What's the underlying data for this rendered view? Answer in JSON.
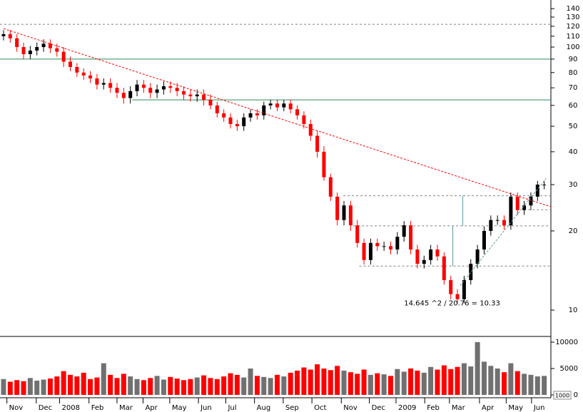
{
  "chart_data": {
    "type": "candlestick",
    "x": [
      0,
      1,
      2,
      3,
      4,
      5,
      6,
      7,
      8,
      9,
      10,
      11,
      12,
      13,
      14,
      15,
      16,
      17,
      18,
      19,
      20,
      21,
      22,
      23,
      24,
      25,
      26,
      27,
      28,
      29,
      30,
      31,
      32,
      33,
      34,
      35,
      36,
      37,
      38,
      39,
      40,
      41,
      42,
      43,
      44,
      45,
      46,
      47,
      48,
      49,
      50,
      51,
      52,
      53,
      54,
      55,
      56,
      57,
      58,
      59,
      60,
      61,
      62,
      63,
      64,
      65,
      66,
      67,
      68,
      69,
      70,
      71,
      72,
      73,
      74,
      75,
      76,
      77,
      78,
      79,
      80,
      81
    ],
    "open": [
      110,
      112,
      108,
      100,
      94,
      97,
      100,
      103,
      99,
      96,
      88,
      84,
      80,
      78,
      76,
      72,
      73,
      70,
      67,
      64,
      68,
      72,
      70,
      67,
      69,
      71,
      70,
      68,
      66,
      65,
      66,
      63,
      60,
      56,
      54,
      51,
      50,
      54,
      56,
      55,
      60,
      61,
      59,
      61,
      58,
      55,
      51,
      46,
      40,
      32,
      27,
      22,
      25,
      21,
      18,
      15.5,
      18,
      17.5,
      17.5,
      17,
      19,
      21,
      17,
      15,
      15.5,
      17,
      16,
      13,
      11.5,
      11,
      13,
      15,
      17,
      20,
      22,
      22,
      21,
      27,
      24,
      25,
      27,
      30
    ],
    "high": [
      116,
      116,
      112,
      104,
      101,
      104,
      107,
      107,
      103,
      100,
      92,
      87,
      83,
      81,
      79,
      76,
      76,
      73,
      70,
      71,
      75,
      75,
      73,
      72,
      74,
      74,
      73,
      71,
      69,
      69,
      69,
      66,
      62,
      58,
      56,
      53,
      56,
      58,
      58,
      62,
      63,
      63,
      63,
      63,
      60,
      57,
      53,
      48,
      42,
      33,
      28,
      26,
      26,
      22,
      18.7,
      18.7,
      18.7,
      18.2,
      18.2,
      19.8,
      21.8,
      21.8,
      17.7,
      16.1,
      17.7,
      17.7,
      16.6,
      13.5,
      12,
      13.5,
      15.6,
      17.7,
      20.8,
      22.9,
      22.9,
      22.9,
      28,
      28,
      26,
      28,
      31,
      31
    ],
    "low": [
      106,
      104,
      96,
      90,
      90,
      93,
      96,
      95,
      92,
      84,
      81,
      77,
      75,
      73,
      69,
      69,
      67,
      64,
      61,
      61,
      65,
      67,
      64,
      64,
      66,
      67,
      65,
      63,
      62,
      62,
      60,
      58,
      54,
      52,
      49,
      48,
      48,
      52,
      53,
      53,
      58,
      57,
      57,
      56,
      53,
      49,
      44,
      38,
      31,
      26,
      21,
      21,
      20,
      17.3,
      14.9,
      14.9,
      16.8,
      16.8,
      16.3,
      16.3,
      18.2,
      16.3,
      14.4,
      14.4,
      14.9,
      15.4,
      12.5,
      11,
      10.6,
      10.6,
      12.5,
      14.4,
      16.3,
      19.2,
      21.1,
      20.2,
      20.2,
      23,
      23,
      24,
      26,
      28.8
    ],
    "close": [
      112,
      108,
      100,
      94,
      97,
      100,
      103,
      99,
      96,
      88,
      84,
      80,
      78,
      76,
      72,
      73,
      70,
      67,
      64,
      68,
      72,
      70,
      67,
      69,
      71,
      70,
      68,
      66,
      65,
      66,
      63,
      60,
      56,
      54,
      51,
      50,
      54,
      56,
      55,
      60,
      61,
      59,
      61,
      58,
      55,
      51,
      46,
      40,
      32,
      27,
      22,
      25,
      21,
      18,
      15.5,
      18,
      17.5,
      17.5,
      17,
      19,
      21,
      17,
      15,
      15.5,
      17,
      16,
      13,
      11.5,
      11,
      13,
      15,
      17,
      20,
      22,
      22,
      21,
      27,
      24,
      25,
      27,
      30,
      30
    ],
    "volume": [
      3000,
      2500,
      2800,
      2600,
      3200,
      2700,
      2900,
      3100,
      3500,
      4500,
      3800,
      3500,
      4200,
      3000,
      3300,
      6000,
      3800,
      3200,
      4000,
      3500,
      3000,
      2800,
      3200,
      3600,
      2900,
      3400,
      3100,
      2800,
      3000,
      3300,
      3700,
      3200,
      3000,
      3500,
      4100,
      3800,
      3300,
      5000,
      3600,
      3400,
      3200,
      3800,
      3500,
      4200,
      4600,
      5200,
      4800,
      5800,
      5000,
      4700,
      5500,
      4600,
      4300,
      4000,
      4800,
      3800,
      4100,
      3900,
      3600,
      4900,
      4400,
      5000,
      4600,
      4200,
      5300,
      4800,
      5600,
      4900,
      5300,
      6000,
      5400,
      10000,
      6300,
      5500,
      5000,
      4300,
      6000,
      4500,
      4000,
      3800,
      3500,
      3600
    ],
    "up_color": "#000000",
    "down_color": "#ff0000",
    "volume_up_color": "#707070",
    "volume_down_color": "#ff0000",
    "log_scale": true,
    "xlim": [
      -0.53,
      82
    ],
    "xticks": [
      {
        "value": 0.5,
        "label": "Nov"
      },
      {
        "value": 4.9,
        "label": "Dec"
      },
      {
        "value": 8.4,
        "label": "2008"
      },
      {
        "value": 12.8,
        "label": "Feb"
      },
      {
        "value": 17,
        "label": "Mar"
      },
      {
        "value": 20.9,
        "label": "Apr"
      },
      {
        "value": 24.9,
        "label": "May"
      },
      {
        "value": 29.2,
        "label": "Jun"
      },
      {
        "value": 33.3,
        "label": "Jul"
      },
      {
        "value": 37.6,
        "label": "Aug"
      },
      {
        "value": 41.9,
        "label": "Sep"
      },
      {
        "value": 46.2,
        "label": "Oct"
      },
      {
        "value": 50.6,
        "label": "Nov"
      },
      {
        "value": 54.8,
        "label": "Dec"
      },
      {
        "value": 58.8,
        "label": "2009"
      },
      {
        "value": 63.1,
        "label": "Feb"
      },
      {
        "value": 66.8,
        "label": "Mar"
      },
      {
        "value": 71.3,
        "label": "Apr"
      },
      {
        "value": 75.3,
        "label": "May"
      },
      {
        "value": 79.1,
        "label": "Jun"
      }
    ],
    "ylim": [
      7.94,
      151
    ],
    "yticks": [
      10,
      20,
      30,
      40,
      50,
      60,
      70,
      80,
      90,
      100,
      110,
      120,
      130,
      140
    ],
    "y2lim": [
      -540,
      11080
    ],
    "y2ticks": [
      0,
      5000,
      10000
    ],
    "volume_unit": "1000",
    "hlines": [
      {
        "y": 122,
        "x": [
          -0.53,
          82
        ],
        "color": "#808080",
        "dashed": true
      },
      {
        "y": 90,
        "x": [
          -0.53,
          82
        ],
        "color": "#2e8b57",
        "dashed": false
      },
      {
        "y": 63,
        "x": [
          19.3,
          82
        ],
        "color": "#2e8b57",
        "dashed": false
      },
      {
        "y": 27.2,
        "x": [
          50.9,
          82
        ],
        "color": "#808080",
        "dashed": true
      },
      {
        "y": 24.1,
        "x": [
          78.6,
          82
        ],
        "color": "#808080",
        "dashed": true
      },
      {
        "y": 20.9,
        "x": [
          52.4,
          82
        ],
        "color": "#808080",
        "dashed": true
      },
      {
        "y": 14.7,
        "x": [
          53.3,
          82
        ],
        "color": "#808080",
        "dashed": true
      }
    ],
    "trendlines": [
      {
        "x": [
          0,
          82
        ],
        "y": [
          117.6,
          24.7
        ],
        "color": "#ff0000"
      },
      {
        "x": [
          68.4,
          81.3
        ],
        "y": [
          12.4,
          31.7
        ],
        "color": "#5f9ea0"
      }
    ],
    "vlines": [
      {
        "x": 68.8,
        "y": [
          20.9,
          27.2
        ],
        "color": "#5f9ea0"
      },
      {
        "x": 67.3,
        "y": [
          14.7,
          20.9
        ],
        "color": "#5f9ea0"
      }
    ],
    "annotation": "14.645 ^2 / 20.76 = 10.33",
    "annotation_x": 60,
    "annotation_y": 10.6
  }
}
